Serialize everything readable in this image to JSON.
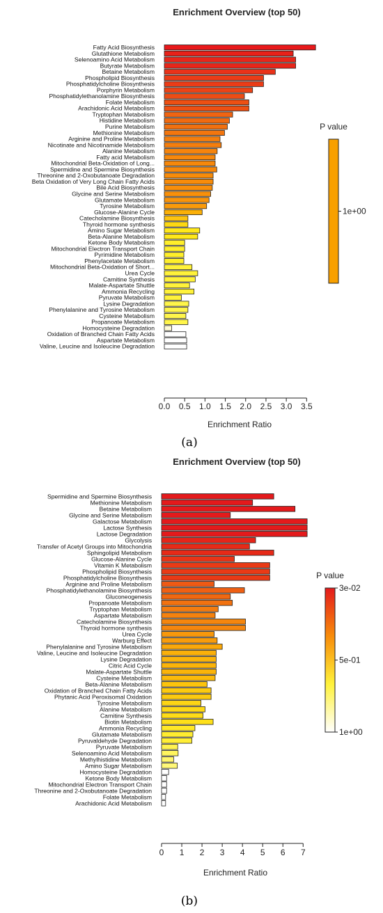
{
  "chart_data": [
    {
      "type": "bar",
      "orientation": "horizontal",
      "title": "Enrichment Overview (top 50)",
      "xlabel": "Enrichment Ratio",
      "xlim": [
        0,
        3.7
      ],
      "xticks": [
        "0.0",
        "0.5",
        "1.0",
        "1.5",
        "2.0",
        "2.5",
        "3.0",
        "3.5"
      ],
      "legend_title": "P value",
      "legend_ticks": [
        "1e+00"
      ],
      "sublabel": "(a)",
      "categories": [
        "Fatty Acid Biosynthesis",
        "Glutathione Metabolism",
        "Selenoamino Acid Metabolism",
        "Butyrate Metabolism",
        "Betaine Metabolism",
        "Phospholipid Biosynthesis",
        "Phosphatidylcholine Biosynthesis",
        "Porphyrin Metabolism",
        "Phosphatidylethanolamine Biosynthesis",
        "Folate Metabolism",
        "Arachidonic Acid Metabolism",
        "Tryptophan Metabolism",
        "Histidine Metabolism",
        "Purine Metabolism",
        "Methionine Metabolism",
        "Arginine and Proline Metabolism",
        "Nicotinate and Nicotinamide Metabolism",
        "Alanine Metabolism",
        "Fatty acid Metabolism",
        "Mitochondrial Beta-Oxidation of Long...",
        "Spermidine and Spermine Biosynthesis",
        "Threonine and 2-Oxobutanoate Degradation",
        "Beta Oxidation of Very Long Chain Fatty Acids",
        "Bile Acid Biosynthesis",
        "Glycine and Serine Metabolism",
        "Glutamate Metabolism",
        "Tyrosine Metabolism",
        "Glucose-Alanine Cycle",
        "Catecholamine Biosynthesis",
        "Thyroid hormone synthesis",
        "Amino Sugar Metabolism",
        "Beta-Alanine Metabolism",
        "Ketone Body Metabolism",
        "Mitochondrial Electron Transport Chain",
        "Pyrimidine Metabolism",
        "Phenylacetate Metabolism",
        "Mitochondrial Beta-Oxidation of Short...",
        "Urea Cycle",
        "Carnitine Synthesis",
        "Malate-Aspartate Shuttle",
        "Ammonia Recycling",
        "Pyruvate Metabolism",
        "Lysine Degradation",
        "Phenylalanine and Tyrosine Metabolism",
        "Cysteine Metabolism",
        "Propanoate Metabolism",
        "Homocysteine Degradation",
        "Oxidation of Branched Chain Fatty Acids",
        "Aspartate Metabolism",
        "Valine, Leucine and Isoleucine Degradation"
      ],
      "values": [
        3.72,
        3.17,
        3.23,
        3.23,
        2.73,
        2.44,
        2.44,
        2.17,
        1.97,
        2.08,
        2.08,
        1.68,
        1.6,
        1.55,
        1.48,
        1.37,
        1.4,
        1.3,
        1.25,
        1.25,
        1.29,
        1.2,
        1.2,
        1.18,
        1.14,
        1.1,
        1.04,
        0.93,
        0.58,
        0.58,
        0.87,
        0.82,
        0.5,
        0.5,
        0.48,
        0.48,
        0.68,
        0.82,
        0.76,
        0.62,
        0.73,
        0.42,
        0.6,
        0.58,
        0.53,
        0.58,
        0.18,
        0.53,
        0.55,
        0.55
      ],
      "colors": [
        "#e8191b",
        "#e8221a",
        "#e8261a",
        "#e8261a",
        "#ea3219",
        "#eb3c17",
        "#eb3c17",
        "#ec4316",
        "#ed4c15",
        "#ee5013",
        "#ee5013",
        "#f06411",
        "#f16a10",
        "#f2700f",
        "#f3760e",
        "#f57e0d",
        "#f57e0d",
        "#f6840c",
        "#f7880b",
        "#f7880b",
        "#f7880b",
        "#f88c0a",
        "#f88c0a",
        "#f88e0a",
        "#f8900a",
        "#f9940a",
        "#fa9a09",
        "#fbb008",
        "#fdc410",
        "#fdd812",
        "#ffe81a",
        "#ffe81a",
        "#ffef2a",
        "#ffef2a",
        "#ffef2a",
        "#ffef2a",
        "#fff23a",
        "#fff23a",
        "#fff23a",
        "#fff23a",
        "#fff23a",
        "#fff23a",
        "#fff54a",
        "#fff54a",
        "#fff54a",
        "#fff54a",
        "#fffbd8",
        "#ffffff",
        "#ffffff",
        "#ffffff"
      ]
    },
    {
      "type": "bar",
      "orientation": "horizontal",
      "title": "Enrichment Overview (top 50)",
      "xlabel": "Enrichment Ratio",
      "xlim": [
        0,
        7.3
      ],
      "xticks": [
        "0",
        "1",
        "2",
        "3",
        "4",
        "5",
        "6",
        "7"
      ],
      "legend_title": "P value",
      "legend_ticks": [
        "3e-02",
        "5e-01",
        "1e+00"
      ],
      "sublabel": "(b)",
      "categories": [
        "Spermidine and Spermine Biosynthesis",
        "Methionine Metabolism",
        "Betaine Metabolism",
        "Glycine and Serine Metabolism",
        "Galactose Metabolism",
        "Lactose Synthesis",
        "Lactose Degradation",
        "Glycolysis",
        "Transfer of Acetyl Groups into Mitochondria",
        "Sphingolipid Metabolism",
        "Glucose-Alanine Cycle",
        "Vitamin K Metabolism",
        "Phospholipid Biosynthesis",
        "Phosphatidylcholine Biosynthesis",
        "Arginine and Proline Metabolism",
        "Phosphatidylethanolamine Biosynthesis",
        "Gluconeogenesis",
        "Propanoate Metabolism",
        "Tryptophan Metabolism",
        "Aspartate Metabolism",
        "Catecholamine Biosynthesis",
        "Thyroid hormone synthesis",
        "Urea Cycle",
        "Warburg Effect",
        "Phenylalanine and Tyrosine Metabolism",
        "Valine, Leucine and Isoleucine Degradation",
        "Lysine Degradation",
        "Citric Acid Cycle",
        "Malate-Aspartate Shuttle",
        "Cysteine Metabolism",
        "Beta-Alanine Metabolism",
        "Oxidation of Branched Chain Fatty Acids",
        "Phytanic Acid Peroxisomal Oxidation",
        "Tyrosine Metabolism",
        "Alanine Metabolism",
        "Carnitine Synthesis",
        "Biotin Metabolism",
        "Ammonia Recycling",
        "Glutamate Metabolism",
        "Pyruvaldehyde Degradation",
        "Pyruvate Metabolism",
        "Selenoamino Acid Metabolism",
        "Methylhistidine Metabolism",
        "Amino Sugar Metabolism",
        "Homocysteine Degradation",
        "Ketone Body Metabolism",
        "Mitochondrial Electron Transport Chain",
        "Threonine and 2-Oxobutanoate Degradation",
        "Folate Metabolism",
        "Arachidonic Acid Metabolism"
      ],
      "values": [
        5.55,
        4.5,
        6.6,
        3.4,
        7.2,
        7.2,
        7.2,
        4.65,
        4.35,
        5.55,
        3.6,
        5.35,
        5.35,
        5.35,
        2.6,
        4.1,
        3.4,
        3.5,
        2.8,
        2.65,
        4.15,
        4.15,
        2.6,
        2.75,
        3.0,
        2.7,
        2.7,
        2.7,
        2.7,
        2.65,
        2.25,
        2.45,
        2.45,
        1.95,
        2.15,
        2.05,
        2.55,
        1.65,
        1.55,
        1.5,
        0.8,
        0.82,
        0.6,
        0.78,
        0.35,
        0.25,
        0.25,
        0.25,
        0.2,
        0.2
      ],
      "colors": [
        "#e41a1c",
        "#e41a1c",
        "#e41a1c",
        "#e41a1c",
        "#e41a1c",
        "#e41a1c",
        "#e41a1c",
        "#e62419",
        "#e72a18",
        "#e72a18",
        "#e93417",
        "#ea3a16",
        "#ea3a16",
        "#ea3a16",
        "#ee5a14",
        "#ef6013",
        "#f06811",
        "#f27210",
        "#f47c0f",
        "#f5820e",
        "#f5860e",
        "#f5860e",
        "#f8980b",
        "#f89c0b",
        "#faa80a",
        "#fab00a",
        "#fbb40a",
        "#fbb40a",
        "#fbb40a",
        "#fcba0a",
        "#fcc40c",
        "#fcca10",
        "#fcca10",
        "#fdd514",
        "#fdd816",
        "#fedc18",
        "#fee01a",
        "#ffe826",
        "#ffec30",
        "#ffee36",
        "#fff250",
        "#fff55e",
        "#fff66c",
        "#fff878",
        "#ffffff",
        "#ffffff",
        "#ffffff",
        "#ffffff",
        "#ffffff",
        "#ffffff"
      ]
    }
  ]
}
